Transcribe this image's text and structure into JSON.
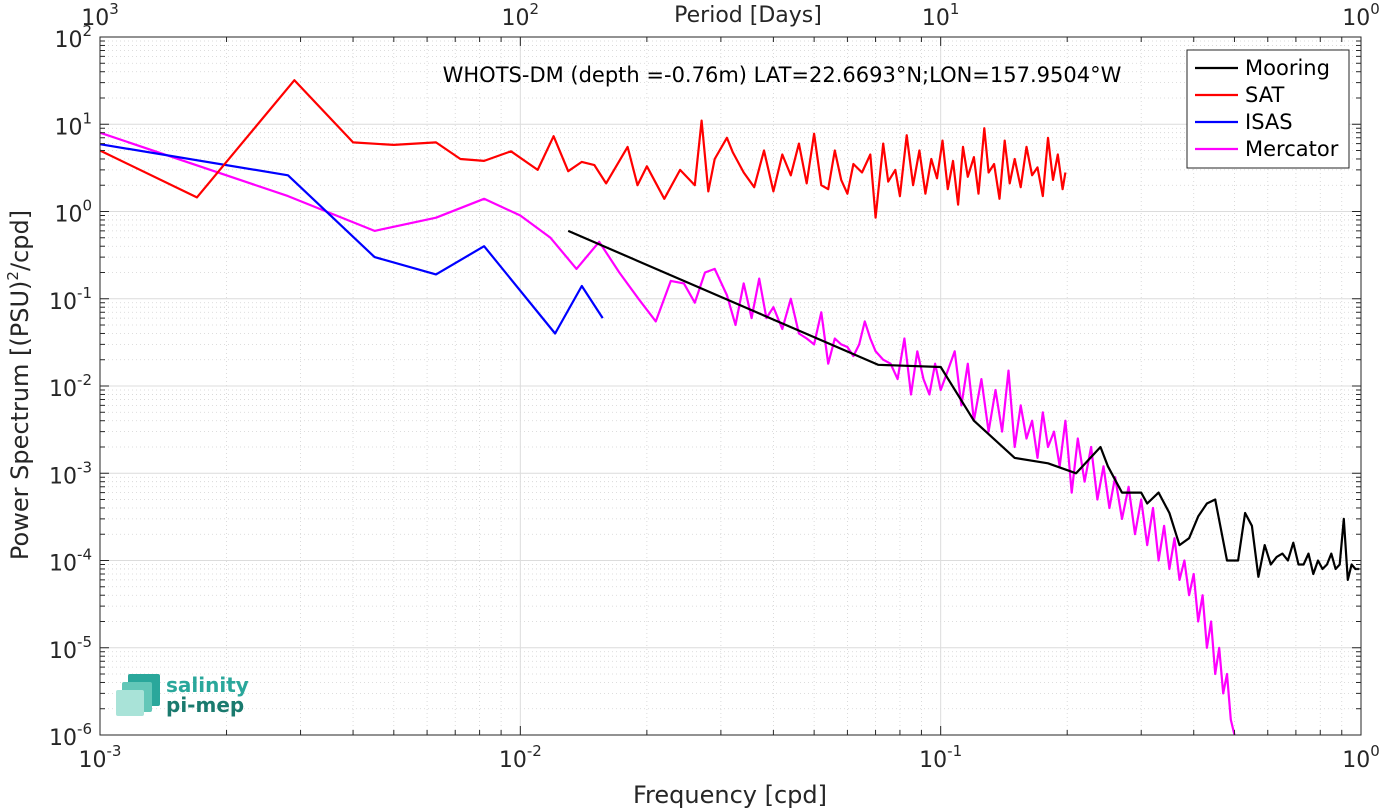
{
  "chart_data": {
    "type": "line",
    "title": "WHOTS-DM (depth =-0.76m) LAT=22.6693°N;LON=157.9504°W",
    "xlabel": "Frequency [cpd]",
    "ylabel_main": "Power Spectrum [(PSU)",
    "ylabel_sup": "2",
    "ylabel_tail": "/cpd]",
    "top_xlabel": "Period [Days]",
    "x_scale": "log",
    "y_scale": "log",
    "xlim": [
      0.001,
      1
    ],
    "ylim": [
      1e-06,
      100
    ],
    "grid": true,
    "legend_position": "top-right",
    "x_ticks": [
      {
        "value": 0.001,
        "base": "10",
        "exp": "-3"
      },
      {
        "value": 0.01,
        "base": "10",
        "exp": "-2"
      },
      {
        "value": 0.1,
        "base": "10",
        "exp": "-1"
      },
      {
        "value": 1,
        "base": "10",
        "exp": "0"
      }
    ],
    "top_ticks": [
      {
        "value": 0.001,
        "base": "10",
        "exp": "3"
      },
      {
        "value": 0.01,
        "base": "10",
        "exp": "2"
      },
      {
        "value": 0.1,
        "base": "10",
        "exp": "1"
      },
      {
        "value": 1,
        "base": "10",
        "exp": "0"
      }
    ],
    "y_ticks": [
      {
        "value": 100,
        "base": "10",
        "exp": "2"
      },
      {
        "value": 10,
        "base": "10",
        "exp": "1"
      },
      {
        "value": 1,
        "base": "10",
        "exp": "0"
      },
      {
        "value": 0.1,
        "base": "10",
        "exp": "-1"
      },
      {
        "value": 0.01,
        "base": "10",
        "exp": "-2"
      },
      {
        "value": 0.001,
        "base": "10",
        "exp": "-3"
      },
      {
        "value": 0.0001,
        "base": "10",
        "exp": "-4"
      },
      {
        "value": 1e-05,
        "base": "10",
        "exp": "-5"
      },
      {
        "value": 1e-06,
        "base": "10",
        "exp": "-6"
      }
    ],
    "series": [
      {
        "name": "Mooring",
        "color": "#000000",
        "x": [
          0.013,
          0.071,
          0.1,
          0.12,
          0.15,
          0.18,
          0.21,
          0.24,
          0.25,
          0.27,
          0.3,
          0.31,
          0.33,
          0.35,
          0.37,
          0.39,
          0.41,
          0.43,
          0.45,
          0.48,
          0.51,
          0.53,
          0.55,
          0.57,
          0.59,
          0.61,
          0.63,
          0.65,
          0.67,
          0.69,
          0.71,
          0.73,
          0.75,
          0.77,
          0.79,
          0.81,
          0.83,
          0.85,
          0.87,
          0.89,
          0.91,
          0.93,
          0.95,
          0.97,
          0.99
        ],
        "y": [
          0.6,
          0.0175,
          0.0165,
          0.004,
          0.0015,
          0.0013,
          0.001,
          0.002,
          0.0012,
          0.0006,
          0.0006,
          0.00045,
          0.0006,
          0.00035,
          0.00015,
          0.00018,
          0.00032,
          0.00045,
          0.0005,
          0.0001,
          0.0001,
          0.00035,
          0.00025,
          6.5e-05,
          0.00015,
          9e-05,
          0.00011,
          0.00012,
          0.0001,
          0.00016,
          9e-05,
          9e-05,
          0.00012,
          7e-05,
          0.0001,
          8e-05,
          9e-05,
          0.00012,
          8e-05,
          9e-05,
          0.0003,
          6e-05,
          9e-05,
          8e-05,
          8e-05
        ]
      },
      {
        "name": "SAT",
        "color": "#ff0000",
        "x": [
          0.001,
          0.0017,
          0.0029,
          0.004,
          0.005,
          0.0063,
          0.0072,
          0.0082,
          0.0095,
          0.011,
          0.012,
          0.013,
          0.014,
          0.015,
          0.016,
          0.018,
          0.019,
          0.02,
          0.022,
          0.024,
          0.026,
          0.027,
          0.028,
          0.029,
          0.031,
          0.032,
          0.034,
          0.036,
          0.038,
          0.04,
          0.042,
          0.044,
          0.046,
          0.048,
          0.05,
          0.052,
          0.054,
          0.056,
          0.058,
          0.06,
          0.062,
          0.065,
          0.068,
          0.07,
          0.073,
          0.075,
          0.078,
          0.08,
          0.083,
          0.086,
          0.089,
          0.092,
          0.095,
          0.098,
          0.101,
          0.104,
          0.107,
          0.11,
          0.113,
          0.116,
          0.12,
          0.123,
          0.127,
          0.13,
          0.134,
          0.138,
          0.142,
          0.146,
          0.15,
          0.155,
          0.16,
          0.165,
          0.17,
          0.175,
          0.18,
          0.185,
          0.19,
          0.195,
          0.198
        ],
        "y": [
          5,
          1.45,
          32,
          6.2,
          5.8,
          6.2,
          4.0,
          3.8,
          4.9,
          3.0,
          7.3,
          2.9,
          3.7,
          3.4,
          2.1,
          5.5,
          2.0,
          3.3,
          1.4,
          3.0,
          2.0,
          11,
          1.7,
          4.0,
          7.0,
          4.8,
          2.8,
          1.9,
          5.0,
          1.7,
          4.5,
          2.6,
          6.0,
          2.1,
          7.8,
          2.0,
          1.8,
          5.0,
          2.3,
          1.6,
          3.5,
          2.8,
          4.5,
          0.85,
          6.0,
          2.2,
          3.0,
          1.5,
          7.5,
          2.0,
          5.0,
          1.6,
          4.0,
          2.4,
          6.5,
          1.8,
          3.8,
          1.2,
          5.5,
          2.5,
          4.2,
          1.6,
          9.0,
          2.8,
          3.5,
          1.4,
          6.5,
          2.1,
          4.0,
          1.9,
          5.5,
          2.6,
          3.2,
          1.5,
          7.0,
          2.3,
          4.5,
          1.8,
          2.8
        ]
      },
      {
        "name": "ISAS",
        "color": "#0000ff",
        "x": [
          0.001,
          0.0028,
          0.0045,
          0.0063,
          0.0082,
          0.0121,
          0.014,
          0.0157
        ],
        "y": [
          5.9,
          2.6,
          0.3,
          0.19,
          0.4,
          0.04,
          0.14,
          0.06
        ]
      },
      {
        "name": "Mercator",
        "color": "#ff00ff",
        "x": [
          0.001,
          0.0028,
          0.0045,
          0.0063,
          0.0082,
          0.01,
          0.0118,
          0.0136,
          0.0154,
          0.0172,
          0.0191,
          0.021,
          0.0228,
          0.0245,
          0.026,
          0.0275,
          0.029,
          0.031,
          0.0325,
          0.034,
          0.0355,
          0.037,
          0.0385,
          0.04,
          0.042,
          0.044,
          0.046,
          0.048,
          0.05,
          0.052,
          0.054,
          0.056,
          0.058,
          0.06,
          0.062,
          0.064,
          0.066,
          0.068,
          0.07,
          0.073,
          0.076,
          0.079,
          0.082,
          0.085,
          0.088,
          0.091,
          0.094,
          0.097,
          0.1,
          0.104,
          0.108,
          0.112,
          0.116,
          0.12,
          0.125,
          0.13,
          0.135,
          0.14,
          0.145,
          0.15,
          0.155,
          0.16,
          0.165,
          0.17,
          0.175,
          0.18,
          0.186,
          0.192,
          0.198,
          0.205,
          0.212,
          0.22,
          0.228,
          0.236,
          0.244,
          0.252,
          0.26,
          0.27,
          0.28,
          0.29,
          0.3,
          0.31,
          0.32,
          0.33,
          0.34,
          0.35,
          0.36,
          0.37,
          0.38,
          0.39,
          0.4,
          0.41,
          0.42,
          0.43,
          0.44,
          0.45,
          0.46,
          0.47,
          0.48,
          0.49,
          0.5
        ],
        "y": [
          8,
          1.5,
          0.6,
          0.85,
          1.4,
          0.9,
          0.5,
          0.22,
          0.45,
          0.2,
          0.1,
          0.055,
          0.16,
          0.15,
          0.09,
          0.2,
          0.22,
          0.11,
          0.05,
          0.15,
          0.06,
          0.17,
          0.06,
          0.08,
          0.045,
          0.1,
          0.04,
          0.035,
          0.03,
          0.07,
          0.018,
          0.035,
          0.03,
          0.028,
          0.022,
          0.03,
          0.055,
          0.035,
          0.025,
          0.02,
          0.018,
          0.012,
          0.035,
          0.008,
          0.025,
          0.012,
          0.008,
          0.018,
          0.009,
          0.015,
          0.025,
          0.006,
          0.018,
          0.004,
          0.012,
          0.003,
          0.009,
          0.003,
          0.015,
          0.002,
          0.006,
          0.0025,
          0.004,
          0.0015,
          0.005,
          0.002,
          0.003,
          0.0012,
          0.004,
          0.0006,
          0.0025,
          0.0008,
          0.002,
          0.0005,
          0.0012,
          0.0004,
          0.0009,
          0.0003,
          0.0007,
          0.0002,
          0.0005,
          0.00015,
          0.0004,
          0.0001,
          0.00025,
          8e-05,
          0.00018,
          6e-05,
          0.0001,
          4e-05,
          7e-05,
          2e-05,
          4e-05,
          1e-05,
          2e-05,
          5e-06,
          1e-05,
          3e-06,
          5e-06,
          1.5e-06,
          1e-06
        ]
      }
    ]
  },
  "logo": {
    "line1": "salinity",
    "line2": "pi-mep",
    "line1_color": "#2aa79b",
    "line2_color": "#1a7a6e"
  }
}
